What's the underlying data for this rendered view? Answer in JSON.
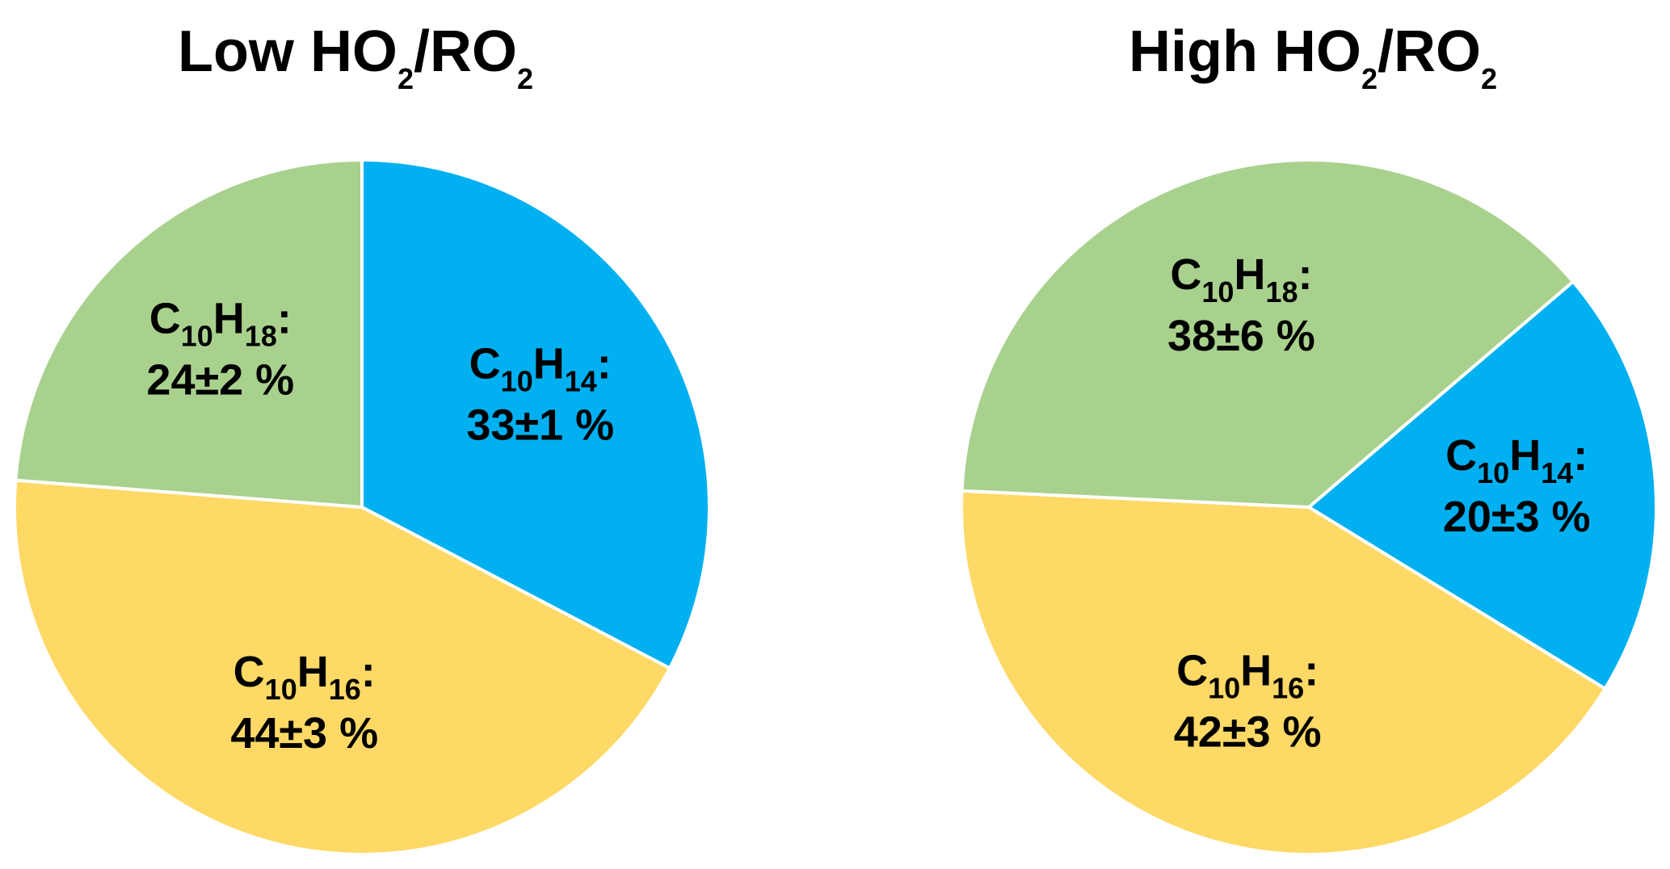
{
  "chart_data": [
    {
      "type": "pie",
      "title": "Low HO2/RO2",
      "title_parts": [
        {
          "text": "Low HO",
          "sub": false
        },
        {
          "text": "2",
          "sub": true
        },
        {
          "text": "/RO",
          "sub": false
        },
        {
          "text": "2",
          "sub": true
        }
      ],
      "start": "12 o'clock",
      "direction": "clockwise",
      "slices": [
        {
          "species": "C10H14",
          "value": 33,
          "label": "33±1 %",
          "color": "#00B0F0",
          "formula": [
            {
              "text": "C",
              "sub": false
            },
            {
              "text": "10",
              "sub": true
            },
            {
              "text": "H",
              "sub": false
            },
            {
              "text": "14",
              "sub": true
            },
            {
              "text": ":",
              "sub": false
            }
          ]
        },
        {
          "species": "C10H16",
          "value": 44,
          "label": "44±3 %",
          "color": "#FFD966",
          "formula": [
            {
              "text": "C",
              "sub": false
            },
            {
              "text": "10",
              "sub": true
            },
            {
              "text": "H",
              "sub": false
            },
            {
              "text": "16",
              "sub": true
            },
            {
              "text": ":",
              "sub": false
            }
          ]
        },
        {
          "species": "C10H18",
          "value": 24,
          "label": "24±2 %",
          "color": "#A9D18E",
          "formula": [
            {
              "text": "C",
              "sub": false
            },
            {
              "text": "10",
              "sub": true
            },
            {
              "text": "H",
              "sub": false
            },
            {
              "text": "18",
              "sub": true
            },
            {
              "text": ":",
              "sub": false
            }
          ]
        }
      ]
    },
    {
      "type": "pie",
      "title": "High HO2/RO2",
      "title_parts": [
        {
          "text": "High HO",
          "sub": false
        },
        {
          "text": "2",
          "sub": true
        },
        {
          "text": "/RO",
          "sub": false
        },
        {
          "text": "2",
          "sub": true
        }
      ],
      "start": "2 o'clock",
      "direction": "clockwise",
      "slices": [
        {
          "species": "C10H14",
          "value": 20,
          "label": "20±3 %",
          "color": "#00B0F0",
          "formula": [
            {
              "text": "C",
              "sub": false
            },
            {
              "text": "10",
              "sub": true
            },
            {
              "text": "H",
              "sub": false
            },
            {
              "text": "14",
              "sub": true
            },
            {
              "text": ":",
              "sub": false
            }
          ]
        },
        {
          "species": "C10H16",
          "value": 42,
          "label": "42±3 %",
          "color": "#FFD966",
          "formula": [
            {
              "text": "C",
              "sub": false
            },
            {
              "text": "10",
              "sub": true
            },
            {
              "text": "H",
              "sub": false
            },
            {
              "text": "16",
              "sub": true
            },
            {
              "text": ":",
              "sub": false
            }
          ]
        },
        {
          "species": "C10H18",
          "value": 38,
          "label": "38±6 %",
          "color": "#A9D18E",
          "formula": [
            {
              "text": "C",
              "sub": false
            },
            {
              "text": "10",
              "sub": true
            },
            {
              "text": "H",
              "sub": false
            },
            {
              "text": "18",
              "sub": true
            },
            {
              "text": ":",
              "sub": false
            }
          ]
        }
      ]
    }
  ]
}
